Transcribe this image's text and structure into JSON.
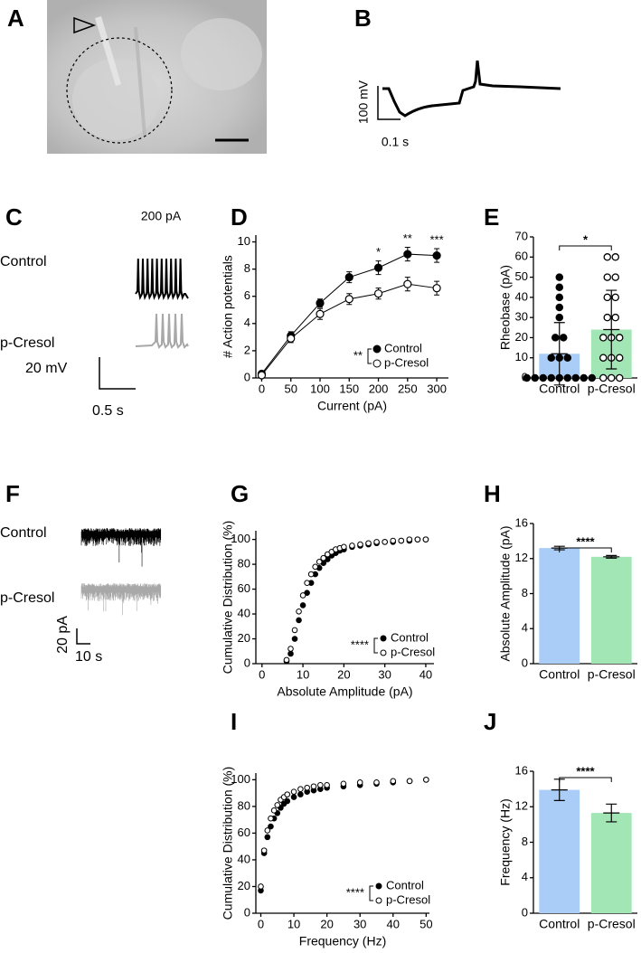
{
  "panel_letters": [
    "A",
    "B",
    "C",
    "D",
    "E",
    "F",
    "G",
    "H",
    "I",
    "J"
  ],
  "panel_b": {
    "scale_y": "100 mV",
    "scale_x": "0.1 s"
  },
  "panel_c": {
    "stimulus": "200 pA",
    "traces": [
      "Control",
      "p-Cresol"
    ],
    "scale_y": "20 mV",
    "scale_x": "0.5 s"
  },
  "panel_f": {
    "traces": [
      "Control",
      "p-Cresol"
    ],
    "scale_y": "20 pA",
    "scale_x": "10 s"
  },
  "chart_data": [
    {
      "type": "line",
      "ylabel": "# Action potentials",
      "xlabel": "Current (pA)",
      "x": [
        0,
        50,
        100,
        150,
        200,
        250,
        300
      ],
      "series": [
        {
          "name": "Control",
          "color": "#000000",
          "values": [
            0.3,
            3.1,
            5.5,
            7.4,
            8.1,
            9.1,
            9.0
          ],
          "errors": [
            0.2,
            0.3,
            0.3,
            0.4,
            0.5,
            0.5,
            0.5
          ]
        },
        {
          "name": "p-Cresol",
          "color": "#ffffff",
          "values": [
            0.2,
            2.9,
            4.7,
            5.8,
            6.2,
            6.9,
            6.6
          ],
          "errors": [
            0.2,
            0.3,
            0.4,
            0.4,
            0.4,
            0.5,
            0.5
          ]
        }
      ],
      "xlim": [
        -10,
        320
      ],
      "xticks": [
        0,
        50,
        100,
        150,
        200,
        250,
        300
      ],
      "ylim": [
        0,
        10.5
      ],
      "yticks": [
        0,
        2,
        4,
        6,
        8,
        10
      ],
      "legend_stat": "**",
      "annotations": [
        {
          "x": 200,
          "text": "*"
        },
        {
          "x": 250,
          "text": "**"
        },
        {
          "x": 300,
          "text": "***"
        }
      ]
    },
    {
      "type": "bar",
      "ylabel": "Rheobase (pA)",
      "categories": [
        "Control",
        "p-Cresol"
      ],
      "values": [
        12,
        24
      ],
      "errors": [
        15.5,
        19.5
      ],
      "colors": [
        "#a9cdf6",
        "#a3e6b6"
      ],
      "points": [
        [
          0,
          0,
          0,
          0,
          0,
          0,
          0,
          0,
          0,
          10,
          10,
          10,
          20,
          20,
          30,
          35,
          40,
          45,
          50
        ],
        [
          0,
          0,
          0,
          10,
          10,
          10,
          20,
          20,
          20,
          30,
          30,
          40,
          40,
          50,
          50,
          60,
          60
        ]
      ],
      "point_fill": [
        "#000000",
        "#ffffff"
      ],
      "ylim": [
        0,
        70
      ],
      "yticks": [
        0,
        10,
        20,
        30,
        40,
        50,
        60,
        70
      ],
      "significance": "*"
    },
    {
      "type": "scatter",
      "ylabel": "Cumulative Distribution (%)",
      "xlabel": "Absolute Amplitude (pA)",
      "series": [
        {
          "name": "Control",
          "color": "#000000",
          "x": [
            6,
            7,
            8,
            9,
            10,
            11,
            12,
            13,
            14,
            15,
            16,
            17,
            18,
            19,
            20,
            22,
            24,
            26,
            28,
            30,
            32,
            34,
            36,
            38,
            40
          ],
          "values": [
            2,
            8,
            20,
            35,
            47,
            57,
            65,
            72,
            77,
            81,
            84,
            87,
            89,
            91,
            92,
            94,
            95,
            96,
            97,
            98,
            98,
            99,
            99,
            100,
            100
          ]
        },
        {
          "name": "p-Cresol",
          "color": "#ffffff",
          "x": [
            6,
            7,
            8,
            9,
            10,
            11,
            12,
            13,
            14,
            15,
            16,
            17,
            18,
            19,
            20,
            22,
            24,
            26,
            28,
            30,
            32,
            34,
            36,
            38,
            40
          ],
          "values": [
            3,
            12,
            27,
            42,
            55,
            65,
            72,
            78,
            82,
            85,
            88,
            90,
            92,
            93,
            94,
            95,
            96,
            97,
            98,
            98,
            99,
            99,
            100,
            100,
            100
          ]
        }
      ],
      "xlim": [
        -1.5,
        42
      ],
      "xticks": [
        0,
        10,
        20,
        30,
        40
      ],
      "ylim": [
        0,
        107
      ],
      "yticks": [
        0,
        20,
        40,
        60,
        80,
        100
      ],
      "legend_stat": "****"
    },
    {
      "type": "bar",
      "ylabel": "Absolute Amplitude (pA)",
      "categories": [
        "Control",
        "p-Cresol"
      ],
      "values": [
        13.2,
        12.2
      ],
      "errors": [
        0.2,
        0.15
      ],
      "colors": [
        "#a9cdf6",
        "#a3e6b6"
      ],
      "ylim": [
        0,
        16
      ],
      "yticks": [
        0,
        4,
        8,
        12,
        16
      ],
      "significance": "****"
    },
    {
      "type": "scatter",
      "ylabel": "Cumulative Distribution (%)",
      "xlabel": "Frequency (Hz)",
      "series": [
        {
          "name": "Control",
          "color": "#000000",
          "x": [
            0,
            1,
            2,
            3,
            4,
            5,
            6,
            7,
            8,
            10,
            12,
            14,
            16,
            18,
            20,
            25,
            30,
            35,
            40,
            45,
            50
          ],
          "values": [
            17,
            45,
            57,
            65,
            71,
            75,
            79,
            82,
            84,
            87,
            89,
            91,
            92,
            93,
            94,
            95,
            96,
            97,
            98,
            99,
            100
          ]
        },
        {
          "name": "p-Cresol",
          "color": "#ffffff",
          "x": [
            0,
            1,
            2,
            3,
            4,
            5,
            6,
            7,
            8,
            10,
            12,
            14,
            16,
            18,
            20,
            25,
            30,
            35,
            40,
            45,
            50
          ],
          "values": [
            20,
            47,
            62,
            71,
            77,
            81,
            85,
            87,
            89,
            91,
            93,
            94,
            95,
            96,
            96,
            97,
            98,
            98,
            99,
            99,
            100
          ]
        }
      ],
      "xlim": [
        -1.5,
        51
      ],
      "xticks": [
        0,
        10,
        20,
        30,
        40,
        50
      ],
      "ylim": [
        0,
        105
      ],
      "yticks": [
        0,
        20,
        40,
        60,
        80,
        100
      ],
      "legend_stat": "****"
    },
    {
      "type": "bar",
      "ylabel": "Frequency (Hz)",
      "categories": [
        "Control",
        "p-Cresol"
      ],
      "values": [
        13.9,
        11.3
      ],
      "errors": [
        1.2,
        1.0
      ],
      "colors": [
        "#a9cdf6",
        "#a3e6b6"
      ],
      "ylim": [
        0,
        16
      ],
      "yticks": [
        0,
        4,
        8,
        12,
        16
      ],
      "significance": "****"
    }
  ]
}
